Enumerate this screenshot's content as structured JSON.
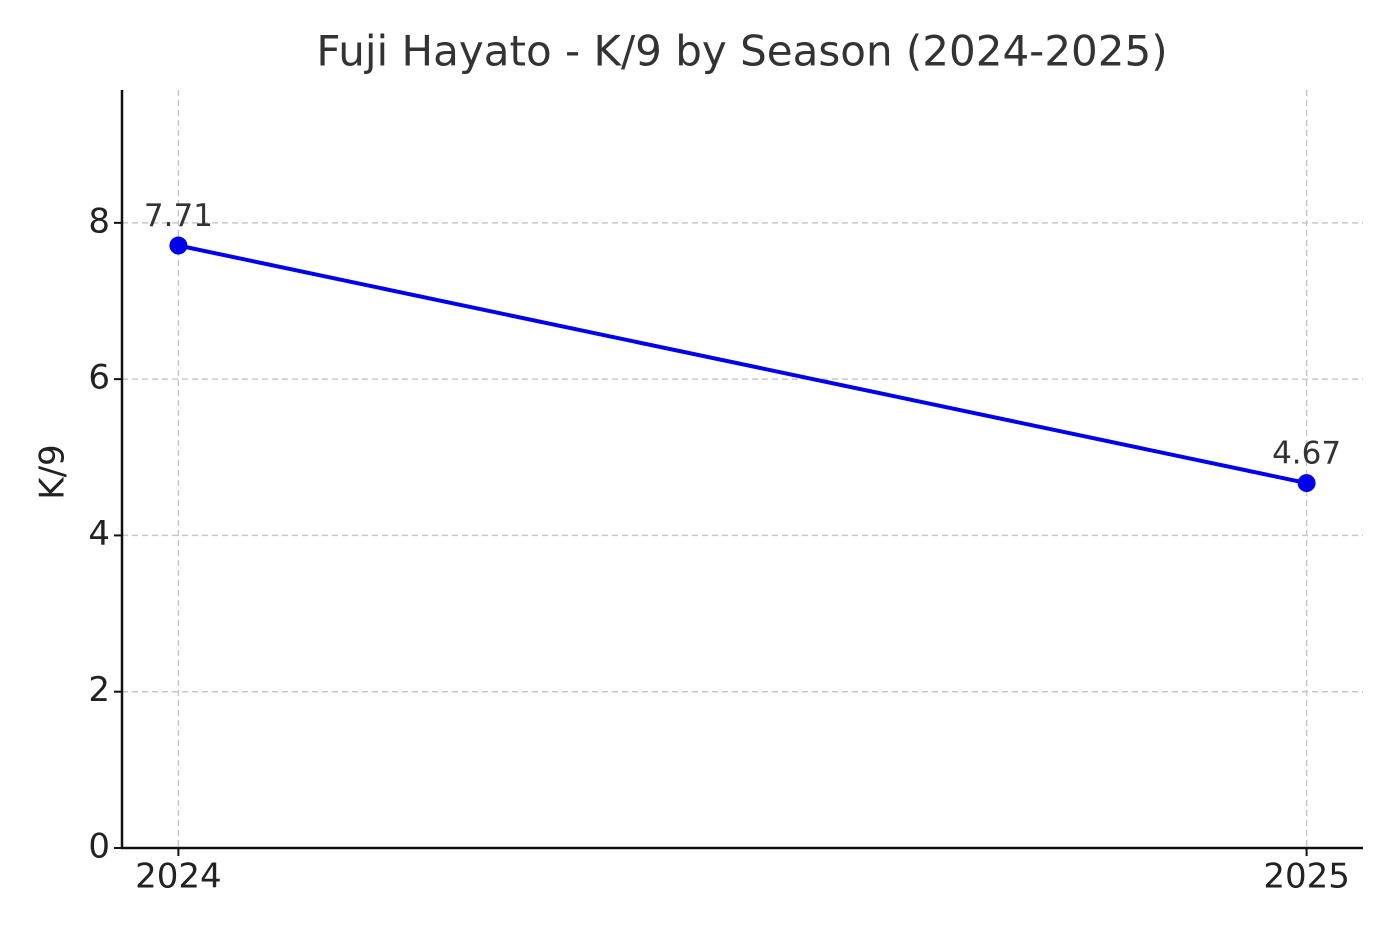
{
  "chart_data": {
    "type": "line",
    "title": "Fuji Hayato - K/9 by Season (2024-2025)",
    "y_label": "K/9",
    "x": [
      2024,
      2025
    ],
    "values": [
      7.71,
      4.67
    ],
    "color": "#0000ee",
    "xlim": [
      2023.95,
      2025.05
    ],
    "xticks": [
      2024,
      2025
    ],
    "ylim": [
      0,
      9.7
    ],
    "yticks": [
      0,
      2,
      4,
      6,
      8
    ],
    "grid": true
  }
}
